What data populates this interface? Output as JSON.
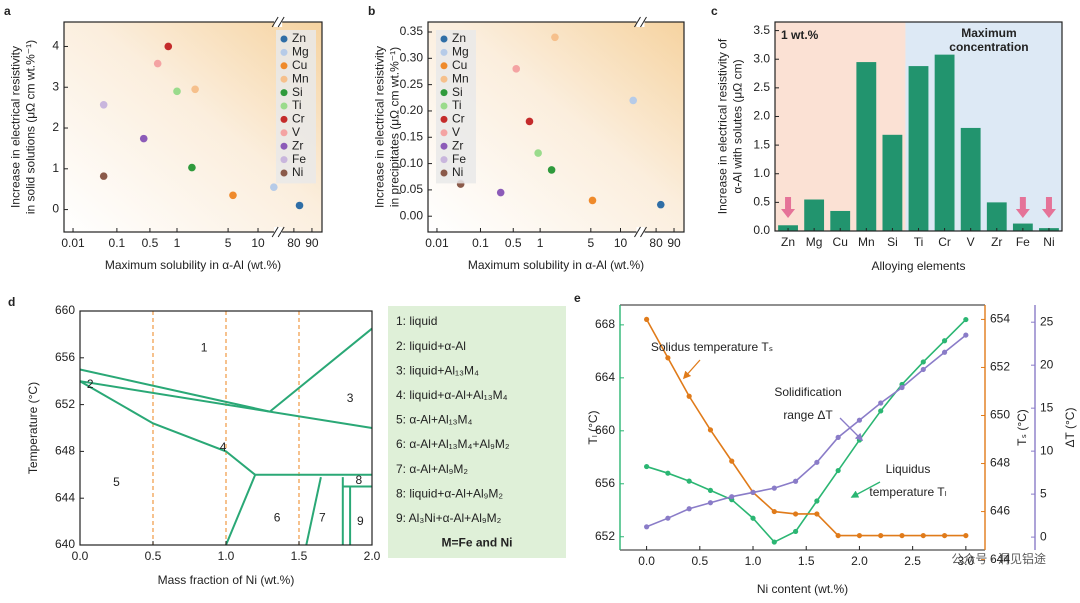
{
  "chart_data": [
    {
      "type": "scatter",
      "label": "a",
      "xlabel": "Maximum solubility in α-Al (wt.%)",
      "ylabel": [
        "Increase in electrical resistivity",
        "in solid solutions (μΩ cm wt.%⁻¹)"
      ],
      "xlim": [
        0.006,
        96
      ],
      "xticks": [
        0.01,
        0.1,
        0.5,
        1,
        5,
        10,
        80,
        90
      ],
      "xscale": "log",
      "ylim": [
        -0.55,
        4.6
      ],
      "yticks": [
        0,
        1,
        2,
        3,
        4
      ],
      "legend": "upper right",
      "series": [
        {
          "name": "Zn",
          "color": "#2f6ea6",
          "x": [
            83
          ],
          "values": [
            0.1
          ]
        },
        {
          "name": "Mg",
          "color": "#b6cbe8",
          "x": [
            25
          ],
          "values": [
            0.55
          ]
        },
        {
          "name": "Cu",
          "color": "#ef8a2b",
          "x": [
            5.6
          ],
          "values": [
            0.35
          ]
        },
        {
          "name": "Mn",
          "color": "#f6c08c",
          "x": [
            1.77
          ],
          "values": [
            2.95
          ]
        },
        {
          "name": "Si",
          "color": "#2f9a3c",
          "x": [
            1.6
          ],
          "values": [
            1.03
          ]
        },
        {
          "name": "Ti",
          "color": "#9adb8c",
          "x": [
            1.0
          ],
          "values": [
            2.9
          ]
        },
        {
          "name": "Cr",
          "color": "#c42b2b",
          "x": [
            0.8
          ],
          "values": [
            4.0
          ]
        },
        {
          "name": "V",
          "color": "#f4a3a3",
          "x": [
            0.61
          ],
          "values": [
            3.58
          ]
        },
        {
          "name": "Zr",
          "color": "#8c5bb8",
          "x": [
            0.37
          ],
          "values": [
            1.74
          ]
        },
        {
          "name": "Fe",
          "color": "#c9b6dd",
          "x": [
            0.05
          ],
          "values": [
            2.57
          ]
        },
        {
          "name": "Ni",
          "color": "#8b5a4a",
          "x": [
            0.05
          ],
          "values": [
            0.82
          ]
        }
      ]
    },
    {
      "type": "scatter",
      "label": "b",
      "xlabel": "Maximum solubility in α-Al (wt.%)",
      "ylabel": [
        "Increase in electrical resistivity",
        "in precipitates (μΩ cm wt.%⁻¹)"
      ],
      "xlim": [
        0.006,
        96
      ],
      "xticks": [
        0.01,
        0.1,
        0.5,
        1,
        5,
        10,
        80,
        90
      ],
      "xscale": "log",
      "ylim": [
        -0.03,
        0.369
      ],
      "yticks": [
        {
          "value": 0,
          "label": "0.00"
        },
        {
          "value": 0.05,
          "label": "0.05"
        },
        {
          "value": 0.1,
          "label": "0.10"
        },
        {
          "value": 0.15,
          "label": "0.15"
        },
        {
          "value": 0.2,
          "label": "0.20"
        },
        {
          "value": 0.25,
          "label": "0.25"
        },
        {
          "value": 0.3,
          "label": "0.30"
        },
        {
          "value": 0.35,
          "label": "0.35"
        }
      ],
      "legend": "upper left",
      "series": [
        {
          "name": "Zn",
          "color": "#2f6ea6",
          "x": [
            82.5
          ],
          "values": [
            0.022
          ]
        },
        {
          "name": "Mg",
          "color": "#b6cbe8",
          "x": [
            21
          ],
          "values": [
            0.22
          ]
        },
        {
          "name": "Cu",
          "color": "#ef8a2b",
          "x": [
            5.2
          ],
          "values": [
            0.03
          ]
        },
        {
          "name": "Mn",
          "color": "#f6c08c",
          "x": [
            1.6
          ],
          "values": [
            0.34
          ]
        },
        {
          "name": "Si",
          "color": "#2f9a3c",
          "x": [
            1.44
          ],
          "values": [
            0.088
          ]
        },
        {
          "name": "Ti",
          "color": "#9adb8c",
          "x": [
            0.95
          ],
          "values": [
            0.12
          ]
        },
        {
          "name": "Cr",
          "color": "#c42b2b",
          "x": [
            0.76
          ],
          "values": [
            0.18
          ]
        },
        {
          "name": "V",
          "color": "#f4a3a3",
          "x": [
            0.54
          ],
          "values": [
            0.28
          ]
        },
        {
          "name": "Zr",
          "color": "#8c5bb8",
          "x": [
            0.27
          ],
          "values": [
            0.045
          ]
        },
        {
          "name": "Fe",
          "color": "#c9b6dd",
          "x": [
            0.035
          ],
          "values": [
            0.063
          ]
        },
        {
          "name": "Ni",
          "color": "#8b5a4a",
          "x": [
            0.035
          ],
          "values": [
            0.061
          ]
        }
      ]
    },
    {
      "type": "bar",
      "label": "c",
      "xlabel": "Alloying elements",
      "ylabel": [
        "Increase in electrical resistivity of",
        "α-Al with solutes (μΩ cm)"
      ],
      "categories": [
        "Zn",
        "Mg",
        "Cu",
        "Mn",
        "Si",
        "Ti",
        "Cr",
        "V",
        "Zr",
        "Fe",
        "Ni"
      ],
      "values": [
        0.1,
        0.55,
        0.35,
        2.95,
        1.68,
        2.88,
        3.08,
        1.8,
        0.5,
        0.13,
        0.05
      ],
      "color": "#22946e",
      "ylim": [
        0,
        3.65
      ],
      "yticks": [
        {
          "value": 0,
          "label": "0.0"
        },
        {
          "value": 0.5,
          "label": "0.5"
        },
        {
          "value": 1,
          "label": "1.0"
        },
        {
          "value": 1.5,
          "label": "1.5"
        },
        {
          "value": 2,
          "label": "2.0"
        },
        {
          "value": 2.5,
          "label": "2.5"
        },
        {
          "value": 3,
          "label": "3.0"
        },
        {
          "value": 3.5,
          "label": "3.5"
        }
      ],
      "annotations": [
        [
          "1 wt.%"
        ],
        [
          "Maximum",
          "concentration"
        ]
      ]
    },
    {
      "type": "phase",
      "label": "d",
      "xlabel": "Mass fraction of Ni (wt.%)",
      "ylabel": [
        "Temperature (°C)"
      ],
      "xlim": [
        0,
        2
      ],
      "xticks": [
        {
          "value": 0,
          "label": "0.0"
        },
        {
          "value": 0.5,
          "label": "0.5"
        },
        {
          "value": 1,
          "label": "1.0"
        },
        {
          "value": 1.5,
          "label": "1.5"
        },
        {
          "value": 2,
          "label": "2.0"
        }
      ],
      "ylim": [
        640,
        660
      ],
      "yticks": [
        640,
        644,
        648,
        652,
        656,
        660
      ],
      "color": "#2aa876",
      "vlines": [
        0.5,
        1.0,
        1.5
      ],
      "vline_color": "#f0a050",
      "series": [
        {
          "x": [
            0,
            1.3
          ],
          "values": [
            655,
            651.4
          ]
        },
        {
          "x": [
            0,
            2.0
          ],
          "values": [
            654,
            650
          ]
        },
        {
          "x": [
            1.3,
            2.0
          ],
          "values": [
            651.4,
            658.5
          ]
        },
        {
          "x": [
            0,
            0.5,
            1.0,
            1.2
          ],
          "values": [
            654,
            650.4,
            648,
            646
          ]
        },
        {
          "x": [
            1.2,
            2.0
          ],
          "values": [
            646,
            646
          ]
        },
        {
          "x": [
            1.2,
            1.0
          ],
          "values": [
            646,
            640
          ]
        },
        {
          "x": [
            1.65,
            1.55
          ],
          "values": [
            645.8,
            640
          ]
        },
        {
          "x": [
            1.8,
            1.8
          ],
          "values": [
            645.8,
            640
          ]
        },
        {
          "x": [
            1.8,
            2.0
          ],
          "values": [
            645,
            645
          ]
        },
        {
          "x": [
            1.85,
            1.85
          ],
          "values": [
            645,
            640
          ]
        }
      ],
      "regions": [
        "1",
        "2",
        "3",
        "4",
        "5",
        "6",
        "7",
        "8",
        "9"
      ],
      "legend_items": [
        "1: liquid",
        "2: liquid+α-Al",
        "3: liquid+Al₁₃M₄",
        "4: liquid+α-Al+Al₁₃M₄",
        "5: α-Al+Al₁₃M₄",
        "6: α-Al+Al₁₃M₄+Al₉M₂",
        "7: α-Al+Al₉M₂",
        "8: liquid+α-Al+Al₉M₂",
        "9: Al₃Ni+α-Al+Al₉M₂",
        "M=Fe and Ni"
      ]
    },
    {
      "type": "line",
      "label": "e",
      "xlabel": "Ni content (wt.%)",
      "ylabel": [
        "Tₗ (°C)"
      ],
      "y2label": "Tₛ (°C)",
      "y3label": "ΔT (°C)",
      "x": [
        0,
        0.2,
        0.4,
        0.6,
        0.8,
        1.0,
        1.2,
        1.4,
        1.6,
        1.8,
        2.0,
        2.2,
        2.4,
        2.6,
        2.8,
        3.0
      ],
      "xlim": [
        -0.25,
        3.18
      ],
      "xticks": [
        {
          "value": 0,
          "label": "0.0"
        },
        {
          "value": 0.5,
          "label": "0.5"
        },
        {
          "value": 1,
          "label": "1.0"
        },
        {
          "value": 1.5,
          "label": "1.5"
        },
        {
          "value": 2,
          "label": "2.0"
        },
        {
          "value": 2.5,
          "label": "2.5"
        },
        {
          "value": 3,
          "label": "3.0"
        }
      ],
      "ylim": [
        651,
        669.5
      ],
      "yticks": [
        652,
        656,
        660,
        664,
        668
      ],
      "y2lim": [
        644.4,
        654.6
      ],
      "y2ticks": [
        644,
        646,
        648,
        650,
        652,
        654
      ],
      "y3lim": [
        -1.5,
        27
      ],
      "y3ticks": [
        0,
        5,
        10,
        15,
        20,
        25
      ],
      "series": [
        {
          "color": "#2bb673",
          "axis": "y",
          "values": [
            657.3,
            656.8,
            656.2,
            655.5,
            654.8,
            653.4,
            651.6,
            652.4,
            654.7,
            657.0,
            659.3,
            661.5,
            663.5,
            665.2,
            666.8,
            668.4
          ]
        },
        {
          "color": "#e07b1a",
          "axis": "y2",
          "values": [
            654.0,
            652.4,
            650.8,
            649.4,
            648.1,
            646.8,
            646.0,
            645.9,
            645.9,
            645.0,
            645.0,
            645.0,
            645.0,
            645.0,
            645.0,
            645.0
          ]
        },
        {
          "color": "#8a7cc8",
          "axis": "y3",
          "values": [
            1.2,
            2.2,
            3.3,
            4.0,
            4.7,
            5.2,
            5.7,
            6.5,
            8.7,
            11.6,
            13.6,
            15.6,
            17.4,
            19.5,
            21.5,
            23.5
          ]
        }
      ],
      "annotations": [
        [
          "Solidus temperature Tₛ"
        ],
        [
          "Solidification",
          "range ΔT"
        ],
        [
          "Liquidus",
          "temperature Tₗ"
        ]
      ],
      "watermark": "公众号 · 洞见铝途"
    }
  ]
}
